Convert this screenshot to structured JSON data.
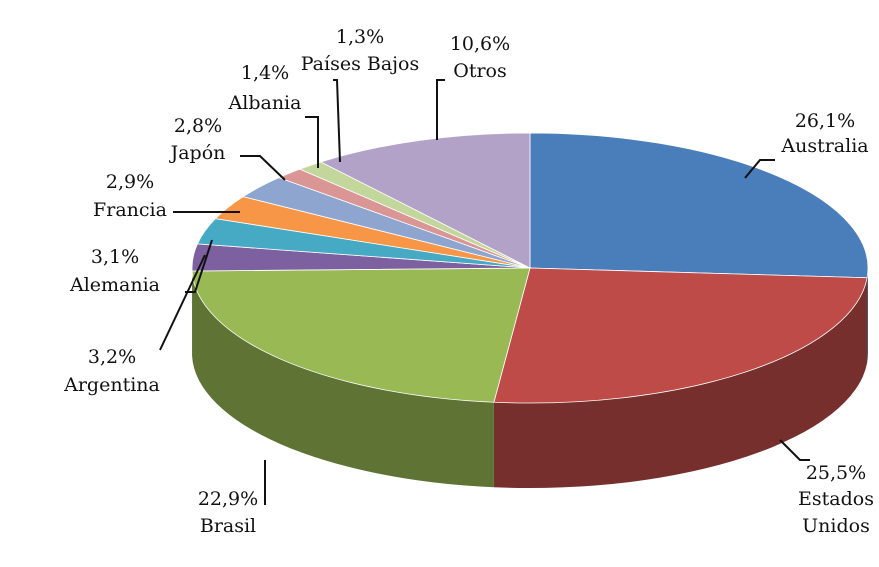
{
  "chart_data": {
    "type": "pie",
    "categories": [
      "Australia",
      "Estados Unidos",
      "Brasil",
      "Argentina",
      "Alemania",
      "Francia",
      "Japón",
      "Albania",
      "Países Bajos",
      "Otros"
    ],
    "values": [
      26.1,
      25.5,
      22.9,
      3.2,
      3.1,
      2.9,
      2.8,
      1.4,
      1.3,
      10.6
    ],
    "value_labels": [
      "26,1%",
      "25,5%",
      "22,9%",
      "3,2%",
      "3,1%",
      "2,9%",
      "2,8%",
      "1,4%",
      "1,3%",
      "10,6%"
    ],
    "colors": [
      "#4a7ebb",
      "#be4b48",
      "#98b954",
      "#7d60a0",
      "#46aac4",
      "#f79646",
      "#8ea5d0",
      "#d99694",
      "#c3d69b",
      "#b3a2c7"
    ]
  }
}
